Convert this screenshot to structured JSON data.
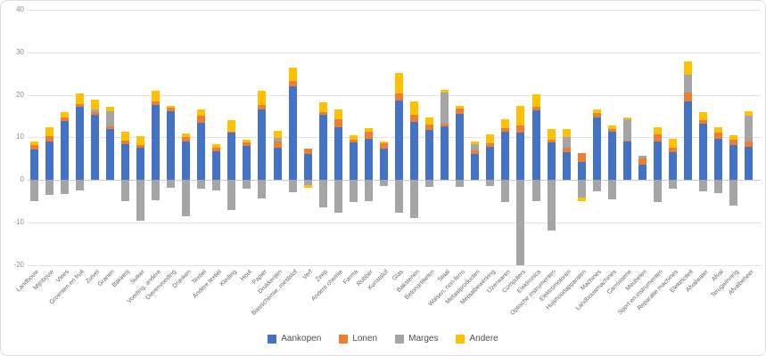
{
  "y_axis": {
    "ticks": [
      40,
      30,
      20,
      10,
      0,
      -10,
      -20
    ],
    "min": -20,
    "max": 40
  },
  "legend": {
    "position": "bottom",
    "items": [
      {
        "label": "Aankopen",
        "color": "#4472C4"
      },
      {
        "label": "Lonen",
        "color": "#ED7D31"
      },
      {
        "label": "Marges",
        "color": "#A5A5A5"
      },
      {
        "label": "Andere",
        "color": "#FFC000"
      }
    ]
  },
  "chart_data": {
    "type": "bar",
    "stacked": true,
    "grid": true,
    "legend_position": "bottom",
    "ylim": [
      -20,
      40
    ],
    "categories": [
      "Landbouw",
      "Mijnbouw",
      "Vlees",
      "Groenten en fruit",
      "Zuivel",
      "Granen",
      "Bakkerij",
      "Suiker",
      "Voeding, andere",
      "Dierenvoeding",
      "Dranken",
      "Textiel",
      "Andere textiel",
      "Kleding",
      "Hout",
      "Papier",
      "Drukkerijen",
      "Basischemie, meststof",
      "Verf",
      "Zeep",
      "Andere chemie",
      "Farma",
      "Rubber",
      "Kunststof",
      "Glas",
      "Bakstenen",
      "Betonartikelen",
      "Staal",
      "Walsen, non-ferro",
      "Metaalproducten",
      "Metaalbewerking",
      "IJzerwaren",
      "Computers",
      "Elektronica",
      "Optische instrumenten",
      "Elektromotoren",
      "Huishoudapparaten",
      "Machines",
      "Landbouwmachines",
      "Carrosserie",
      "Meubelen",
      "Sport en instrumenten",
      "Reparatie machines",
      "Elektriciteit",
      "Afvalwater",
      "Afval",
      "Terugwinning",
      "Afvalbeheer"
    ],
    "series": [
      {
        "name": "Aankopen",
        "color": "#4472C4",
        "values": [
          7.2,
          9.0,
          13.9,
          17.2,
          15.4,
          11.9,
          8.4,
          7.5,
          17.7,
          16.1,
          9.1,
          13.4,
          6.7,
          11.1,
          7.9,
          16.6,
          7.6,
          22.0,
          6.1,
          15.4,
          12.3,
          8.9,
          9.6,
          7.4,
          18.7,
          13.7,
          11.7,
          12.6,
          15.6,
          6.1,
          7.7,
          11.3,
          11.1,
          16.3,
          8.9,
          6.6,
          4.2,
          14.7,
          11.3,
          9.1,
          3.5,
          9.1,
          6.6,
          18.5,
          13.2,
          9.6,
          8.2,
          7.7
        ]
      },
      {
        "name": "Lonen",
        "color": "#ED7D31",
        "values": [
          0.9,
          1.3,
          0.7,
          0.6,
          0.6,
          0.6,
          0.9,
          0.6,
          0.8,
          0.9,
          1.0,
          1.7,
          0.8,
          0.3,
          0.9,
          1.1,
          1.5,
          1.2,
          1.2,
          0.6,
          1.9,
          0.5,
          1.7,
          1.2,
          1.6,
          1.7,
          1.2,
          0.6,
          1.2,
          0.8,
          0.9,
          0.9,
          1.6,
          0.8,
          0.5,
          1.0,
          2.1,
          1.1,
          0.7,
          0.2,
          1.6,
          1.5,
          0.9,
          2.0,
          0.9,
          1.5,
          1.2,
          1.4
        ]
      },
      {
        "name": "Marges",
        "color": "#A5A5A5",
        "values": [
          -5.0,
          -3.5,
          -3.3,
          -2.5,
          0.5,
          3.6,
          -4.9,
          -9.6,
          -4.8,
          -1.8,
          -8.6,
          -2.1,
          -2.5,
          -7.0,
          -2.0,
          -4.3,
          0.8,
          -2.8,
          -1.2,
          -6.5,
          -7.7,
          -5.2,
          -5.0,
          -1.5,
          -7.8,
          -8.9,
          -1.6,
          7.3,
          -1.7,
          1.4,
          -1.5,
          -5.2,
          -20.0,
          -5.0,
          -11.8,
          2.4,
          -4.2,
          -2.6,
          -4.6,
          5.0,
          0.5,
          -5.2,
          -2.1,
          4.3,
          -2.7,
          -3.2,
          -6.1,
          5.9
        ]
      },
      {
        "name": "Andere",
        "color": "#FFC000",
        "values": [
          1.0,
          2.1,
          1.4,
          2.6,
          2.3,
          1.0,
          2.1,
          2.1,
          2.5,
          0.4,
          0.9,
          1.4,
          1.0,
          2.7,
          0.6,
          3.2,
          1.6,
          3.2,
          -0.6,
          2.2,
          2.3,
          1.0,
          0.9,
          0.5,
          4.8,
          3.0,
          1.7,
          0.6,
          0.5,
          0.7,
          2.1,
          2.0,
          4.6,
          3.0,
          2.6,
          1.9,
          -0.8,
          0.8,
          0.7,
          0.3,
          0.0,
          1.7,
          2.1,
          3.0,
          1.9,
          1.2,
          1.0,
          1.2
        ]
      }
    ]
  }
}
